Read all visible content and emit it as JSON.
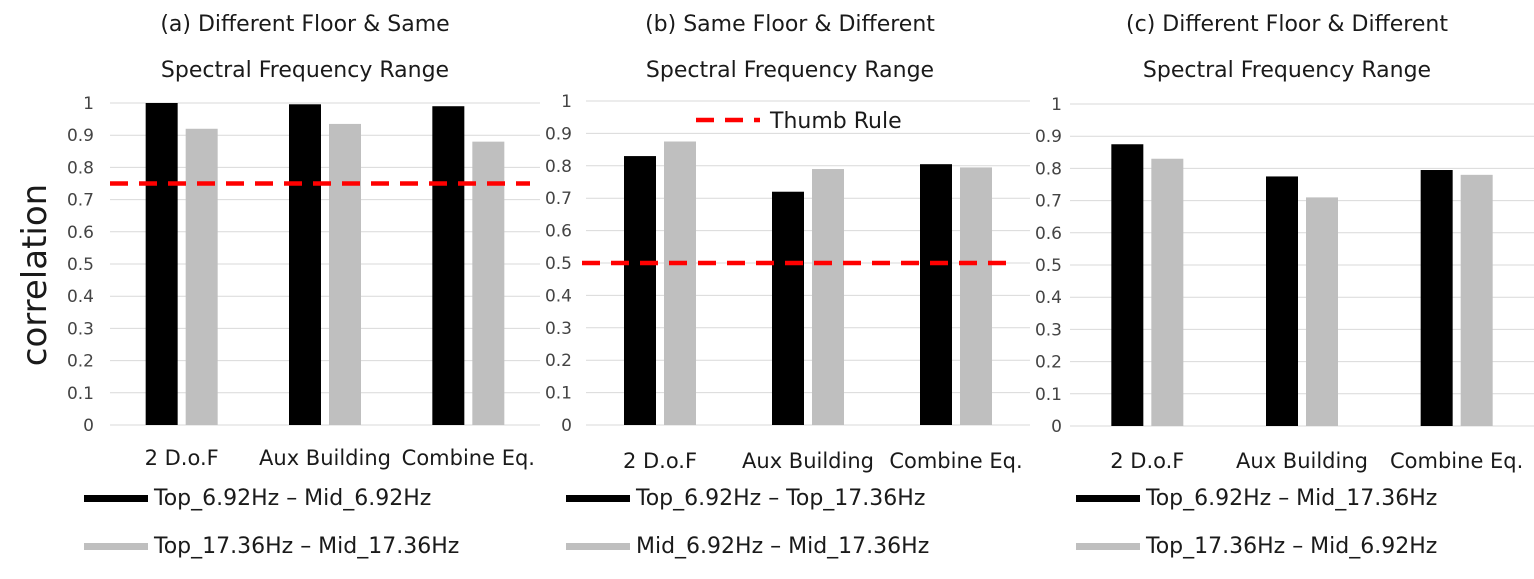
{
  "y_axis_label": "correlation",
  "threshold_label": "Thumb Rule",
  "colors": {
    "series1": "#000000",
    "series2": "#bfbfbf",
    "threshold": "#ff0000",
    "grid": "#d9d9d9"
  },
  "chart_data": [
    {
      "type": "bar",
      "title_line1": "(a) Different Floor & Same",
      "title_line2": "Spectral Frequency Range",
      "categories": [
        "2 D.o.F",
        "Aux Building",
        "Combine Eq."
      ],
      "yticks": [
        "0",
        "0.1",
        "0.2",
        "0.3",
        "0.4",
        "0.5",
        "0.6",
        "0.7",
        "0.8",
        "0.9",
        "1"
      ],
      "ylim": [
        0,
        1
      ],
      "threshold": 0.75,
      "series": [
        {
          "name": "Top_6.92Hz – Mid_6.92Hz",
          "values": [
            1.0,
            0.996,
            0.99
          ]
        },
        {
          "name": "Top_17.36Hz – Mid_17.36Hz",
          "values": [
            0.92,
            0.935,
            0.88
          ]
        }
      ]
    },
    {
      "type": "bar",
      "title_line1": "(b) Same Floor & Different",
      "title_line2": "Spectral Frequency Range",
      "categories": [
        "2 D.o.F",
        "Aux Building",
        "Combine Eq."
      ],
      "yticks": [
        "0",
        "0.1",
        "0.2",
        "0.3",
        "0.4",
        "0.5",
        "0.6",
        "0.7",
        "0.8",
        "0.9",
        "1"
      ],
      "ylim": [
        0,
        1
      ],
      "threshold": 0.5,
      "series": [
        {
          "name": "Top_6.92Hz – Top_17.36Hz",
          "values": [
            0.83,
            0.72,
            0.805
          ]
        },
        {
          "name": "Mid_6.92Hz – Mid_17.36Hz",
          "values": [
            0.875,
            0.79,
            0.795
          ]
        }
      ]
    },
    {
      "type": "bar",
      "title_line1": "(c) Different Floor & Different",
      "title_line2": "Spectral Frequency Range",
      "categories": [
        "2 D.o.F",
        "Aux Building",
        "Combine Eq."
      ],
      "yticks": [
        "0",
        "0.1",
        "0.2",
        "0.3",
        "0.4",
        "0.5",
        "0.6",
        "0.7",
        "0.8",
        "0.9",
        "1"
      ],
      "ylim": [
        0,
        1
      ],
      "threshold": null,
      "series": [
        {
          "name": "Top_6.92Hz – Mid_17.36Hz",
          "values": [
            0.875,
            0.775,
            0.795
          ]
        },
        {
          "name": "Top_17.36Hz – Mid_6.92Hz",
          "values": [
            0.83,
            0.71,
            0.78
          ]
        }
      ]
    }
  ]
}
